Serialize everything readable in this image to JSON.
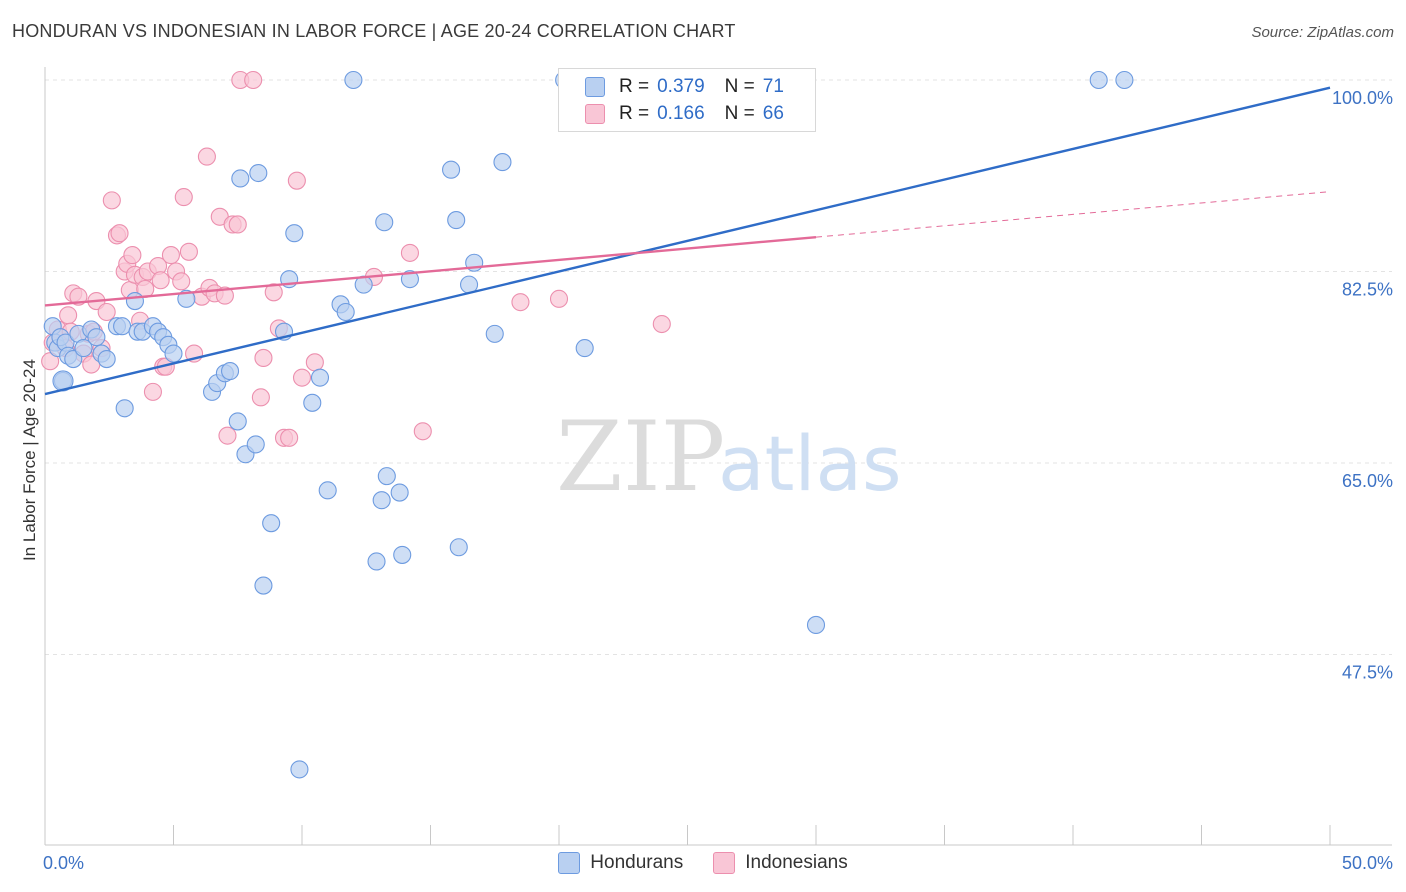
{
  "title": "HONDURAN VS INDONESIAN IN LABOR FORCE | AGE 20-24 CORRELATION CHART",
  "source": "Source: ZipAtlas.com",
  "watermark": {
    "zip": "ZIP",
    "atlas": "atlas"
  },
  "legend": {
    "rows": [
      {
        "r_label": "R =",
        "r_value": "0.379",
        "n_label": "N =",
        "n_value": "71",
        "fill": "#b9d0f1",
        "stroke": "#6d9be0"
      },
      {
        "r_label": "R =",
        "r_value": "0.166",
        "n_label": "N =",
        "n_value": "66",
        "fill": "#f9c6d6",
        "stroke": "#ec8fae"
      }
    ]
  },
  "colors": {
    "blue_fill": "#b9d0f1",
    "blue_stroke": "#6d9be0",
    "blue_line": "#2f6cc7",
    "pink_fill": "#f9c6d6",
    "pink_stroke": "#ec8fae",
    "pink_line": "#e36a98",
    "tick_text": "#3d72c4",
    "grid": "#e3e3e3"
  },
  "chart_data": {
    "type": "scatter",
    "title": "HONDURAN VS INDONESIAN IN LABOR FORCE | AGE 20-24 CORRELATION CHART",
    "xlabel": "",
    "ylabel": "In Labor Force | Age 20-24",
    "xlim": [
      0,
      50
    ],
    "ylim": [
      32,
      102
    ],
    "x_tick_labels": [
      {
        "value": 0,
        "label": "0.0%"
      },
      {
        "value": 50,
        "label": "50.0%"
      }
    ],
    "y_tick_labels": [
      {
        "value": 100,
        "label": "100.0%"
      },
      {
        "value": 82.5,
        "label": "82.5%"
      },
      {
        "value": 65,
        "label": "65.0%"
      },
      {
        "value": 47.5,
        "label": "47.5%"
      }
    ],
    "grid": true,
    "legend_position": "top-center and bottom",
    "series": [
      {
        "name": "Hondurans",
        "r": 0.379,
        "n": 71,
        "trend": {
          "x": [
            0,
            50
          ],
          "y": [
            71.3,
            99.3
          ],
          "dashed_from": null
        },
        "points": [
          [
            0.3,
            77.5
          ],
          [
            0.4,
            76.0
          ],
          [
            0.5,
            75.5
          ],
          [
            0.6,
            76.5
          ],
          [
            0.7,
            72.5
          ],
          [
            0.8,
            76.0
          ],
          [
            0.9,
            74.8
          ],
          [
            1.1,
            74.5
          ],
          [
            1.3,
            76.8
          ],
          [
            1.5,
            75.5
          ],
          [
            1.8,
            77.2
          ],
          [
            2.0,
            76.5
          ],
          [
            2.2,
            75.0
          ],
          [
            2.4,
            74.5
          ],
          [
            2.8,
            77.5
          ],
          [
            3.0,
            77.5
          ],
          [
            3.1,
            70.0
          ],
          [
            3.5,
            79.8
          ],
          [
            3.6,
            77.0
          ],
          [
            3.8,
            77.0
          ],
          [
            4.2,
            77.5
          ],
          [
            4.4,
            77.0
          ],
          [
            4.6,
            76.5
          ],
          [
            4.8,
            75.8
          ],
          [
            5.0,
            75.0
          ],
          [
            5.5,
            80.0
          ],
          [
            6.5,
            71.5
          ],
          [
            6.7,
            72.3
          ],
          [
            7.0,
            73.2
          ],
          [
            7.2,
            73.4
          ],
          [
            7.5,
            68.8
          ],
          [
            7.6,
            91.0
          ],
          [
            7.8,
            65.8
          ],
          [
            8.2,
            66.7
          ],
          [
            8.3,
            91.5
          ],
          [
            8.5,
            53.8
          ],
          [
            8.8,
            59.5
          ],
          [
            9.3,
            77.0
          ],
          [
            9.5,
            81.8
          ],
          [
            9.7,
            86.0
          ],
          [
            9.9,
            37.0
          ],
          [
            10.4,
            70.5
          ],
          [
            10.7,
            72.8
          ],
          [
            11.0,
            62.5
          ],
          [
            11.5,
            79.5
          ],
          [
            11.7,
            78.8
          ],
          [
            12.0,
            100.0
          ],
          [
            12.4,
            81.3
          ],
          [
            12.9,
            56.0
          ],
          [
            13.1,
            61.6
          ],
          [
            13.2,
            87.0
          ],
          [
            13.3,
            63.8
          ],
          [
            13.8,
            62.3
          ],
          [
            13.9,
            56.6
          ],
          [
            14.2,
            81.8
          ],
          [
            15.8,
            91.8
          ],
          [
            16.0,
            87.2
          ],
          [
            16.1,
            57.3
          ],
          [
            16.5,
            81.3
          ],
          [
            16.7,
            83.3
          ],
          [
            17.5,
            76.8
          ],
          [
            17.8,
            92.5
          ],
          [
            20.2,
            100.0
          ],
          [
            21.0,
            75.5
          ],
          [
            23.0,
            100.0
          ],
          [
            24.2,
            100.0
          ],
          [
            30.0,
            50.2
          ],
          [
            41.0,
            100.0
          ],
          [
            42.0,
            100.0
          ]
        ]
      },
      {
        "name": "Indonesians",
        "r": 0.166,
        "n": 66,
        "trend": {
          "x": [
            0,
            50
          ],
          "y": [
            79.4,
            89.8
          ],
          "dashed_from": 30
        },
        "points": [
          [
            0.2,
            74.3
          ],
          [
            0.3,
            76.0
          ],
          [
            0.5,
            77.2
          ],
          [
            0.6,
            76.5
          ],
          [
            0.8,
            75.5
          ],
          [
            0.9,
            78.5
          ],
          [
            1.0,
            77.0
          ],
          [
            1.1,
            80.5
          ],
          [
            1.3,
            80.2
          ],
          [
            1.5,
            75.0
          ],
          [
            1.7,
            76.8
          ],
          [
            1.8,
            74.0
          ],
          [
            1.9,
            77.0
          ],
          [
            2.0,
            79.8
          ],
          [
            2.2,
            75.5
          ],
          [
            2.4,
            78.8
          ],
          [
            2.6,
            89.0
          ],
          [
            2.8,
            85.8
          ],
          [
            2.9,
            86.0
          ],
          [
            3.1,
            82.5
          ],
          [
            3.2,
            83.2
          ],
          [
            3.3,
            80.8
          ],
          [
            3.4,
            84.0
          ],
          [
            3.5,
            82.2
          ],
          [
            3.7,
            78.0
          ],
          [
            3.8,
            82.0
          ],
          [
            3.9,
            80.9
          ],
          [
            4.0,
            82.5
          ],
          [
            4.2,
            71.5
          ],
          [
            4.4,
            83.0
          ],
          [
            4.5,
            81.7
          ],
          [
            4.6,
            73.8
          ],
          [
            4.7,
            73.8
          ],
          [
            4.9,
            84.0
          ],
          [
            5.1,
            82.5
          ],
          [
            5.3,
            81.6
          ],
          [
            5.4,
            89.3
          ],
          [
            5.6,
            84.3
          ],
          [
            5.8,
            75.0
          ],
          [
            6.1,
            80.2
          ],
          [
            6.3,
            93.0
          ],
          [
            6.4,
            81.0
          ],
          [
            6.6,
            80.5
          ],
          [
            6.8,
            87.5
          ],
          [
            7.0,
            80.3
          ],
          [
            7.1,
            67.5
          ],
          [
            7.3,
            86.8
          ],
          [
            7.5,
            86.8
          ],
          [
            7.6,
            100.0
          ],
          [
            8.1,
            100.0
          ],
          [
            8.4,
            71.0
          ],
          [
            8.5,
            74.6
          ],
          [
            8.9,
            80.6
          ],
          [
            9.1,
            77.3
          ],
          [
            9.3,
            67.3
          ],
          [
            9.5,
            67.3
          ],
          [
            9.8,
            90.8
          ],
          [
            10.0,
            72.8
          ],
          [
            10.5,
            74.2
          ],
          [
            12.8,
            82.0
          ],
          [
            14.2,
            84.2
          ],
          [
            14.7,
            67.9
          ],
          [
            18.5,
            79.7
          ],
          [
            20.0,
            80.0
          ],
          [
            24.0,
            77.7
          ]
        ]
      }
    ]
  },
  "bottom_legend": [
    {
      "label": "Hondurans",
      "fill": "#b9d0f1",
      "stroke": "#6d9be0"
    },
    {
      "label": "Indonesians",
      "fill": "#f9c6d6",
      "stroke": "#ec8fae"
    }
  ]
}
